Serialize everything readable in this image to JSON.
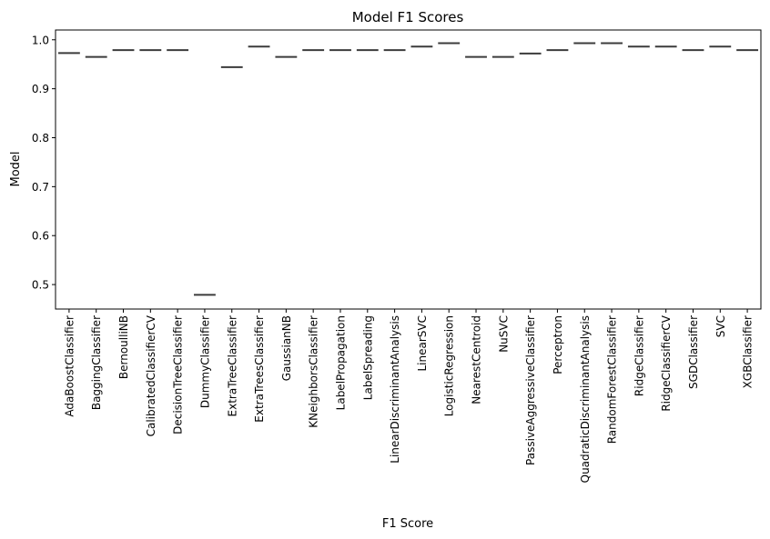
{
  "chart_data": {
    "type": "box",
    "title": "Model F1 Scores",
    "xlabel": "F1 Score",
    "ylabel": "Model",
    "ylim": [
      0.45,
      1.02
    ],
    "yticks": [
      0.5,
      0.6,
      0.7,
      0.8,
      0.9,
      1.0
    ],
    "ytick_labels": [
      "0.5",
      "0.6",
      "0.7",
      "0.8",
      "0.9",
      "1.0"
    ],
    "grid": false,
    "line_color": "#3b3b3b",
    "categories": [
      "AdaBoostClassifier",
      "BaggingClassifier",
      "BernoulliNB",
      "CalibratedClassifierCV",
      "DecisionTreeClassifier",
      "DummyClassifier",
      "ExtraTreeClassifier",
      "ExtraTreesClassifier",
      "GaussianNB",
      "KNeighborsClassifier",
      "LabelPropagation",
      "LabelSpreading",
      "LinearDiscriminantAnalysis",
      "LinearSVC",
      "LogisticRegression",
      "NearestCentroid",
      "NuSVC",
      "PassiveAggressiveClassifier",
      "Perceptron",
      "QuadraticDiscriminantAnalysis",
      "RandomForestClassifier",
      "RidgeClassifier",
      "RidgeClassifierCV",
      "SGDClassifier",
      "SVC",
      "XGBClassifier"
    ],
    "values": [
      0.973,
      0.965,
      0.979,
      0.979,
      0.979,
      0.479,
      0.944,
      0.986,
      0.965,
      0.979,
      0.979,
      0.979,
      0.979,
      0.986,
      0.993,
      0.965,
      0.965,
      0.972,
      0.979,
      0.993,
      0.993,
      0.986,
      0.986,
      0.979,
      0.986,
      0.979
    ]
  }
}
